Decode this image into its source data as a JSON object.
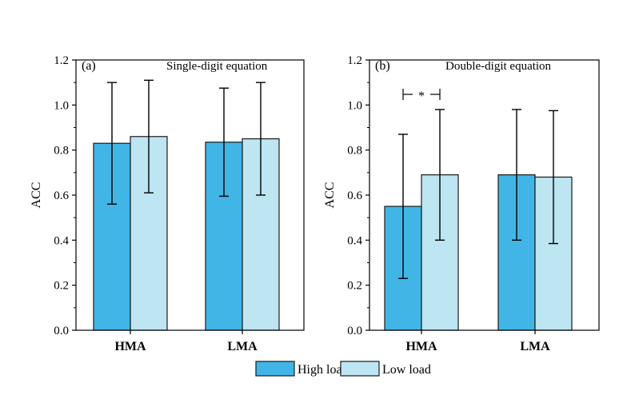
{
  "chart_data": [
    {
      "type": "bar",
      "panel_label": "(a)",
      "title": "Single-digit equation",
      "ylabel": "ACC",
      "categories": [
        "HMA",
        "LMA"
      ],
      "series": [
        {
          "name": "High load",
          "values": [
            0.83,
            0.835
          ],
          "error_high": [
            1.1,
            1.075
          ],
          "error_low": [
            0.56,
            0.595
          ]
        },
        {
          "name": "Low load",
          "values": [
            0.86,
            0.85
          ],
          "error_high": [
            1.11,
            1.1
          ],
          "error_low": [
            0.61,
            0.6
          ]
        }
      ],
      "ylim": [
        0,
        1.2
      ],
      "yticks": [
        "0.0",
        "0.2",
        "0.4",
        "0.6",
        "0.8",
        "1.0",
        "1.2"
      ],
      "grid": false
    },
    {
      "type": "bar",
      "panel_label": "(b)",
      "title": "Double-digit equation",
      "ylabel": "ACC",
      "categories": [
        "HMA",
        "LMA"
      ],
      "series": [
        {
          "name": "High load",
          "values": [
            0.55,
            0.69
          ],
          "error_high": [
            0.87,
            0.98
          ],
          "error_low": [
            0.23,
            0.4
          ]
        },
        {
          "name": "Low load",
          "values": [
            0.69,
            0.68
          ],
          "error_high": [
            0.98,
            0.975
          ],
          "error_low": [
            0.4,
            0.385
          ]
        }
      ],
      "ylim": [
        0,
        1.2
      ],
      "yticks": [
        "0.0",
        "0.2",
        "0.4",
        "0.6",
        "0.8",
        "1.0",
        "1.2"
      ],
      "grid": false,
      "annotations": [
        {
          "text": "*",
          "category": "HMA",
          "between": [
            "High load",
            "Low load"
          ]
        }
      ]
    }
  ],
  "legend": {
    "position": "bottom-center",
    "items": [
      {
        "label": "High load",
        "color": "#41b6e6"
      },
      {
        "label": "Low load",
        "color": "#bde5f2"
      }
    ]
  },
  "colors": {
    "high_load": "#41b6e6",
    "low_load": "#bde5f2",
    "stroke": "#1a1a1a"
  }
}
